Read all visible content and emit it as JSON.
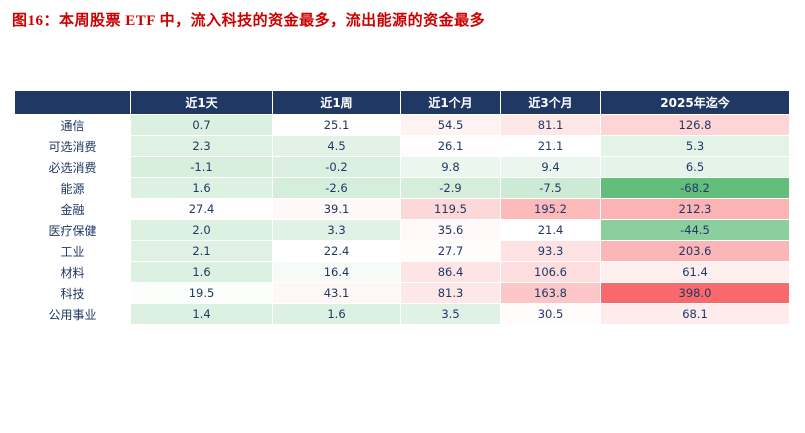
{
  "title": "图16：本周股票 ETF 中，流入科技的资金最多，流出能源的资金最多",
  "colors": {
    "title": "#CC0000",
    "header_bg": "#1F3864",
    "header_text": "#FFFFFF",
    "row_label_text": "#1F3864",
    "cell_text": "#1F3864"
  },
  "chart_data": {
    "type": "heatmap",
    "title": "本周股票 ETF 中，流入科技的资金最多，流出能源的资金最多",
    "columns": [
      "近1天",
      "近1周",
      "近1个月",
      "近3个月",
      "2025年迄今"
    ],
    "rows": [
      "通信",
      "可选消费",
      "必选消费",
      "能源",
      "金融",
      "医疗保健",
      "工业",
      "材料",
      "科技",
      "公用事业"
    ],
    "values": [
      [
        0.7,
        25.1,
        54.5,
        81.1,
        126.8
      ],
      [
        2.3,
        4.5,
        26.1,
        21.1,
        5.3
      ],
      [
        -1.1,
        -0.2,
        9.8,
        9.4,
        6.5
      ],
      [
        1.6,
        -2.6,
        -2.9,
        -7.5,
        -68.2
      ],
      [
        27.4,
        39.1,
        119.5,
        195.2,
        212.3
      ],
      [
        2.0,
        3.3,
        35.6,
        21.4,
        -44.5
      ],
      [
        2.1,
        22.4,
        27.7,
        93.3,
        203.6
      ],
      [
        1.6,
        16.4,
        86.4,
        106.6,
        61.4
      ],
      [
        19.5,
        43.1,
        81.3,
        163.8,
        398.0
      ],
      [
        1.4,
        1.6,
        3.5,
        30.5,
        68.1
      ]
    ],
    "value_format": "one_decimal",
    "color_scale": {
      "min": -68.2,
      "mid": 21.25,
      "max": 398.0,
      "min_color": "#63BE7B",
      "mid_color": "#FFFFFF",
      "max_color": "#F8696B"
    },
    "legend": "none",
    "grid": "white 1px cell separators"
  }
}
